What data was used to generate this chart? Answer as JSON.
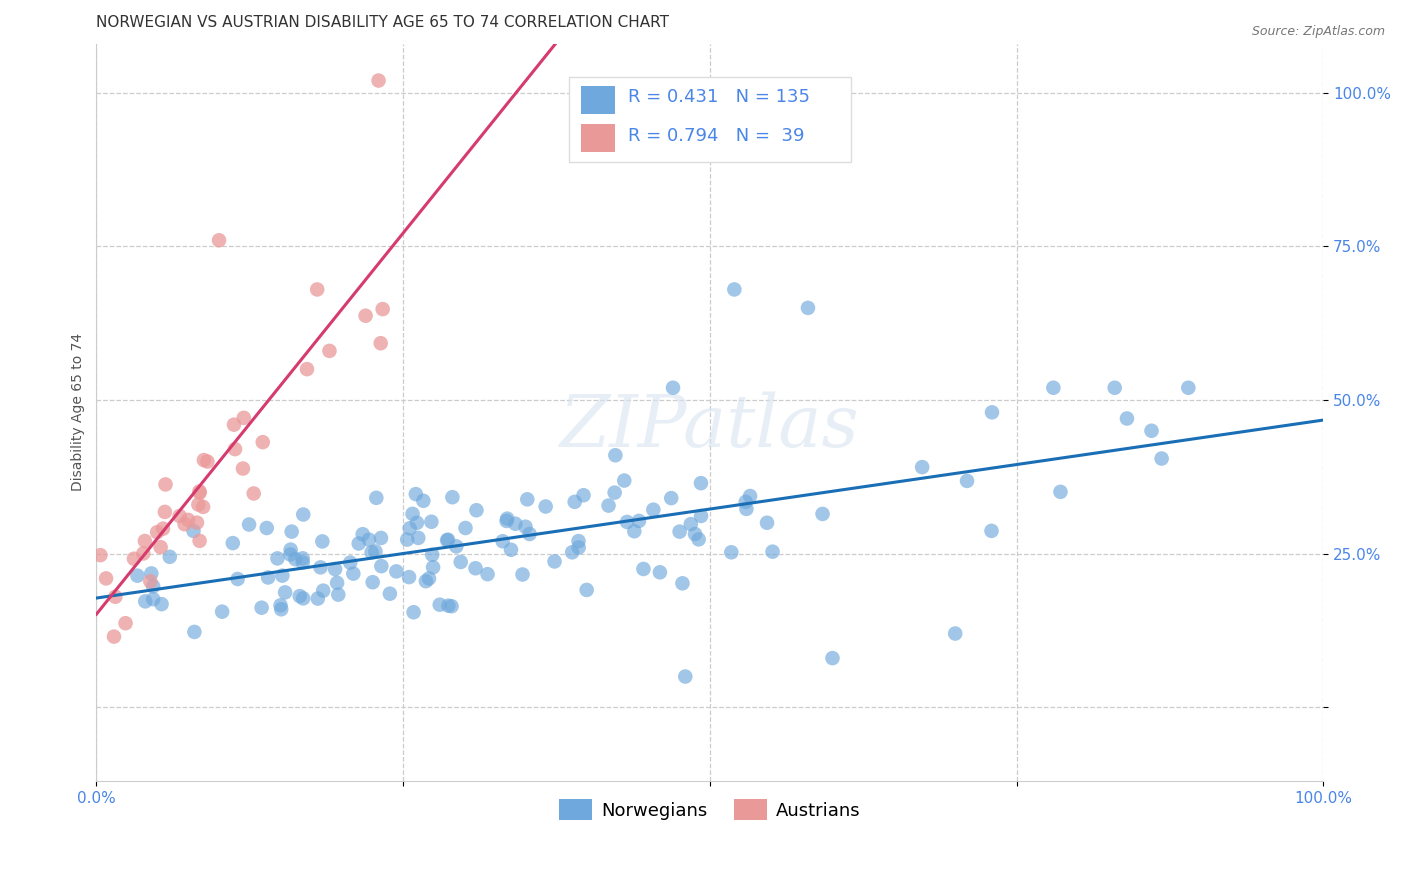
{
  "title": "NORWEGIAN VS AUSTRIAN DISABILITY AGE 65 TO 74 CORRELATION CHART",
  "source": "Source: ZipAtlas.com",
  "ylabel": "Disability Age 65 to 74",
  "xlim": [
    0.0,
    1.0
  ],
  "ylim": [
    -0.12,
    1.08
  ],
  "ytick_positions": [
    0.0,
    0.25,
    0.5,
    0.75,
    1.0
  ],
  "ytick_labels_right": [
    "",
    "25.0%",
    "50.0%",
    "75.0%",
    "100.0%"
  ],
  "xtick_positions": [
    0.0,
    0.25,
    0.5,
    0.75,
    1.0
  ],
  "xtick_labels": [
    "0.0%",
    "",
    "",
    "",
    "100.0%"
  ],
  "norwegian_color": "#6fa8dc",
  "austrian_color": "#ea9999",
  "norwegian_line_color": "#1a6eb5",
  "austrian_line_color": "#d63b6e",
  "legend_norwegian": "Norwegians",
  "legend_austrian": "Austrians",
  "R_norwegian": 0.431,
  "N_norwegian": 135,
  "R_austrian": 0.794,
  "N_austrian": 39,
  "watermark": "ZIPatlas",
  "title_fontsize": 11,
  "source_fontsize": 9,
  "ylabel_fontsize": 10,
  "tick_fontsize": 11,
  "legend_fontsize": 13,
  "watermark_fontsize": 52,
  "tick_color": "#4a86e8"
}
